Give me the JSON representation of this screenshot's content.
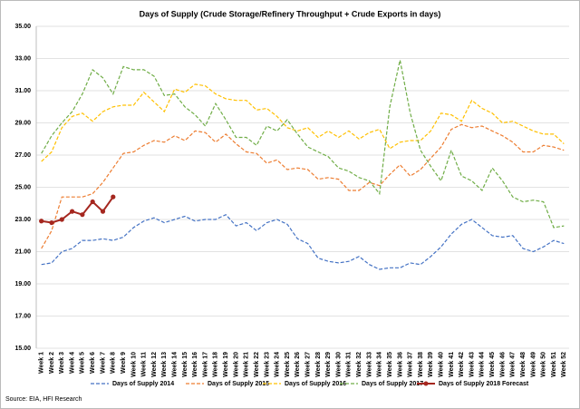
{
  "chart_data": {
    "type": "line",
    "title": "Days of Supply (Crude Storage/Refinery Throughput + Crude Exports in days)",
    "source": "Source: EIA, HFI Research",
    "categories": [
      "Week 1",
      "Week 2",
      "Week 3",
      "Week 4",
      "Week 5",
      "Week 6",
      "Week 7",
      "Week 8",
      "Week 9",
      "Week 10",
      "Week 11",
      "Week 12",
      "Week 13",
      "Week 14",
      "Week 15",
      "Week 16",
      "Week 17",
      "Week 18",
      "Week 19",
      "Week 20",
      "Week 21",
      "Week 22",
      "Week 23",
      "Week 24",
      "Week 25",
      "Week 26",
      "Week 27",
      "Week 28",
      "Week 29",
      "Week 30",
      "Week 31",
      "Week 32",
      "Week 33",
      "Week 34",
      "Week 35",
      "Week 36",
      "Week 37",
      "Week 38",
      "Week 39",
      "Week 40",
      "Week 41",
      "Week 42",
      "Week 43",
      "Week 44",
      "Week 45",
      "Week 46",
      "Week 47",
      "Week 48",
      "Week 49",
      "Week 50",
      "Week 51",
      "Week 52"
    ],
    "ylim": [
      15,
      35
    ],
    "yticks": [
      {
        "value": 15,
        "label": "15.00"
      },
      {
        "value": 17,
        "label": "17.00"
      },
      {
        "value": 19,
        "label": "19.00"
      },
      {
        "value": 21,
        "label": "21.00"
      },
      {
        "value": 23,
        "label": "23.00"
      },
      {
        "value": 25,
        "label": "25.00"
      },
      {
        "value": 27,
        "label": "27.00"
      },
      {
        "value": 29,
        "label": "29.00"
      },
      {
        "value": 31,
        "label": "31.00"
      },
      {
        "value": 33,
        "label": "33.00"
      },
      {
        "value": 35,
        "label": "35.00"
      }
    ],
    "grid": true,
    "legend": "bottom",
    "series": [
      {
        "name": "Days of Supply 2014",
        "color": "#4472c4",
        "dashed": true,
        "values": [
          20.2,
          20.3,
          21.0,
          21.2,
          21.7,
          21.7,
          21.8,
          21.7,
          21.9,
          22.5,
          22.9,
          23.1,
          22.8,
          23.0,
          23.2,
          22.9,
          23.0,
          23.0,
          23.3,
          22.6,
          22.8,
          22.3,
          22.8,
          23.0,
          22.7,
          21.8,
          21.5,
          20.6,
          20.4,
          20.3,
          20.4,
          20.7,
          20.2,
          19.9,
          20.0,
          20.0,
          20.3,
          20.2,
          20.7,
          21.3,
          22.1,
          22.7,
          23.0,
          22.5,
          22.0,
          21.9,
          22.0,
          21.2,
          21.0,
          21.3,
          21.7,
          21.5
        ]
      },
      {
        "name": "Days of Supply 2015",
        "color": "#ed7d31",
        "dashed": true,
        "values": [
          21.2,
          22.3,
          24.4,
          24.4,
          24.4,
          24.6,
          25.3,
          26.2,
          27.1,
          27.2,
          27.6,
          27.9,
          27.8,
          28.2,
          27.9,
          28.5,
          28.4,
          27.8,
          28.3,
          27.7,
          27.2,
          27.1,
          26.5,
          26.7,
          26.1,
          26.2,
          26.1,
          25.5,
          25.6,
          25.5,
          24.8,
          24.8,
          25.3,
          25.1,
          25.8,
          26.4,
          25.7,
          26.1,
          26.8,
          27.5,
          28.6,
          28.9,
          28.7,
          28.8,
          28.5,
          28.2,
          27.8,
          27.2,
          27.2,
          27.6,
          27.5,
          27.3
        ]
      },
      {
        "name": "Days of Supply 2016",
        "color": "#ffc000",
        "dashed": true,
        "values": [
          26.6,
          27.2,
          28.7,
          29.4,
          29.6,
          29.1,
          29.7,
          30.0,
          30.1,
          30.1,
          30.9,
          30.3,
          29.7,
          31.1,
          30.9,
          31.4,
          31.3,
          30.8,
          30.5,
          30.4,
          30.4,
          29.8,
          29.9,
          29.4,
          28.7,
          28.5,
          28.7,
          28.1,
          28.5,
          28.1,
          28.5,
          28.0,
          28.4,
          28.6,
          27.4,
          27.8,
          27.9,
          27.9,
          28.5,
          29.6,
          29.5,
          29.1,
          30.4,
          29.9,
          29.6,
          29.0,
          29.1,
          28.8,
          28.5,
          28.3,
          28.3,
          27.7
        ]
      },
      {
        "name": "Days of Supply 2017",
        "color": "#70ad47",
        "dashed": true,
        "values": [
          27.1,
          28.2,
          29.0,
          29.7,
          30.8,
          32.3,
          31.8,
          30.8,
          32.5,
          32.3,
          32.3,
          31.9,
          30.7,
          30.8,
          30.0,
          29.5,
          28.8,
          30.2,
          29.2,
          28.1,
          28.1,
          27.6,
          28.8,
          28.5,
          29.2,
          28.3,
          27.5,
          27.2,
          26.9,
          26.2,
          26.0,
          25.6,
          25.4,
          24.6,
          30.0,
          32.9,
          29.6,
          27.3,
          26.3,
          25.4,
          27.3,
          25.7,
          25.4,
          24.8,
          26.2,
          25.4,
          24.4,
          24.1,
          24.2,
          24.1,
          22.5,
          22.6
        ]
      },
      {
        "name": "Days of Supply 2018 Forecast",
        "color": "#a5271f",
        "dashed": false,
        "markers": true,
        "values": [
          22.9,
          22.8,
          23.0,
          23.5,
          23.3,
          24.1,
          23.5,
          24.4,
          null,
          null,
          null,
          null,
          null,
          null,
          null,
          null,
          null,
          null,
          null,
          null,
          null,
          null,
          null,
          null,
          null,
          null,
          null,
          null,
          null,
          null,
          null,
          null,
          null,
          null,
          null,
          null,
          null,
          null,
          null,
          null,
          null,
          null,
          null,
          null,
          null,
          null,
          null,
          null,
          null,
          null,
          null,
          null
        ]
      }
    ]
  }
}
